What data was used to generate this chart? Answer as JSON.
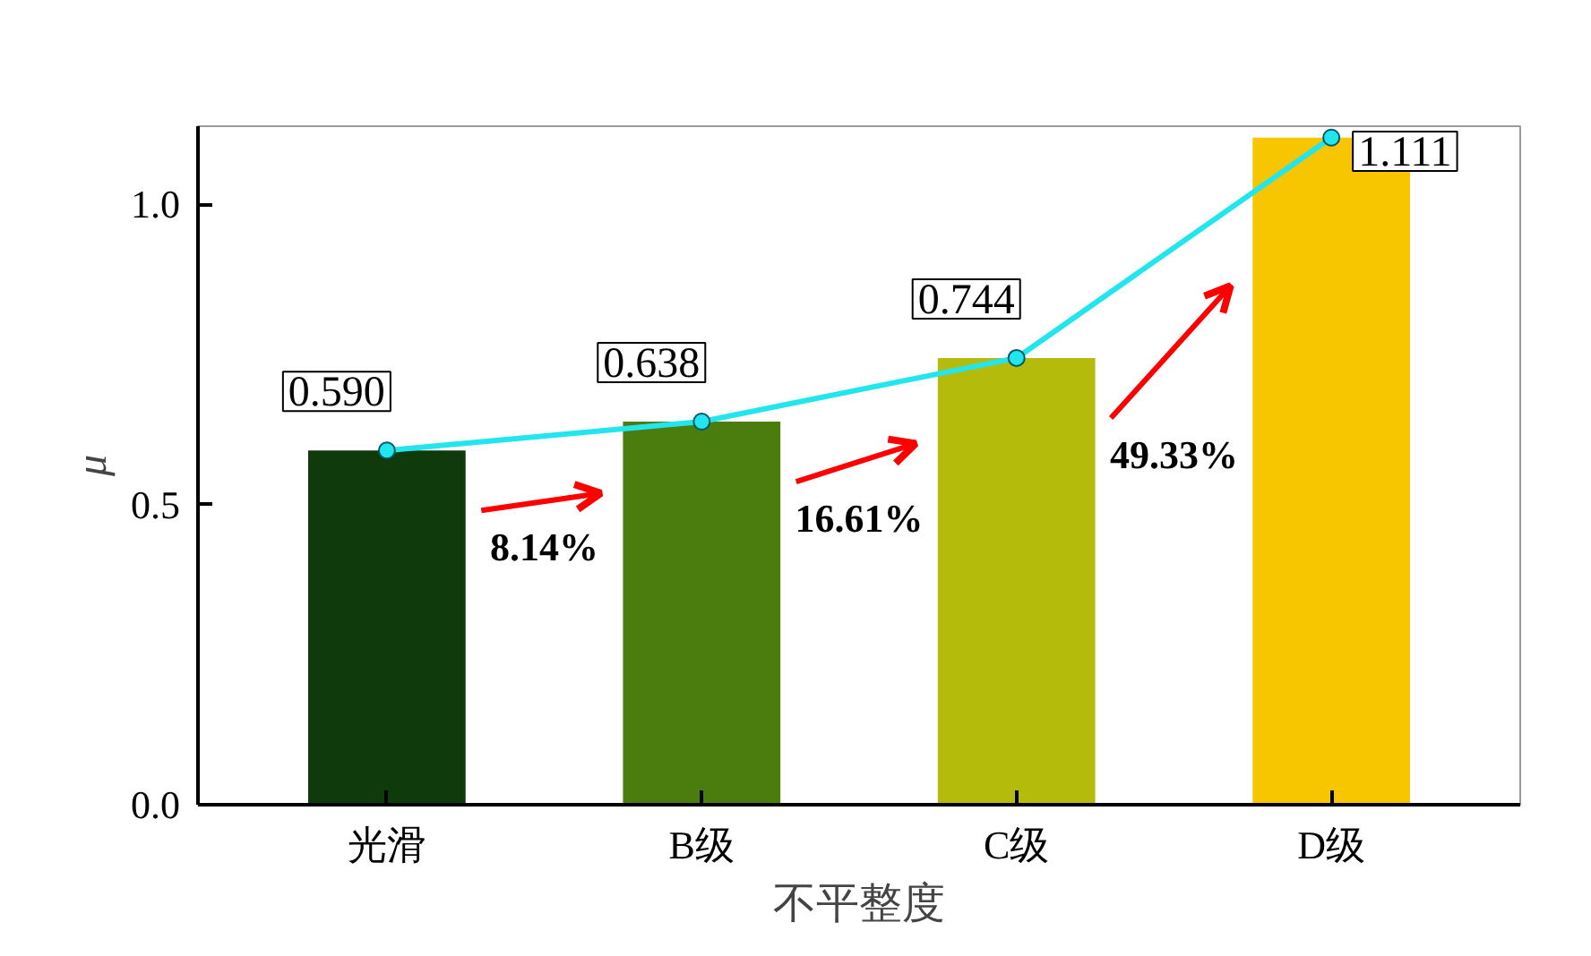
{
  "chart_data": {
    "type": "bar",
    "categories": [
      "光滑",
      "B级",
      "C级",
      "D级"
    ],
    "xlabel": "不平整度",
    "ylabel": "μ",
    "ylim": [
      0,
      1.13
    ],
    "yticks": [
      {
        "value": 0,
        "label": "0.0"
      },
      {
        "value": 0.5,
        "label": "0.5"
      },
      {
        "value": 1,
        "label": "1.0"
      }
    ],
    "series": [
      {
        "colors": [
          "#0f3a0c",
          "#4a7d0e",
          "#b5bb0a",
          "#f7c600"
        ],
        "values": [
          0.59,
          0.638,
          0.744,
          1.111
        ],
        "value_labels": [
          "0.590",
          "0.638",
          "0.744",
          "1.111"
        ]
      },
      {
        "type": "line",
        "color": "#22e5ee",
        "values": [
          0.59,
          0.638,
          0.744,
          1.111
        ],
        "marker": "circle"
      }
    ],
    "annotations": [
      "8.14%",
      "16.61%",
      "49.33%"
    ],
    "grid": false
  }
}
